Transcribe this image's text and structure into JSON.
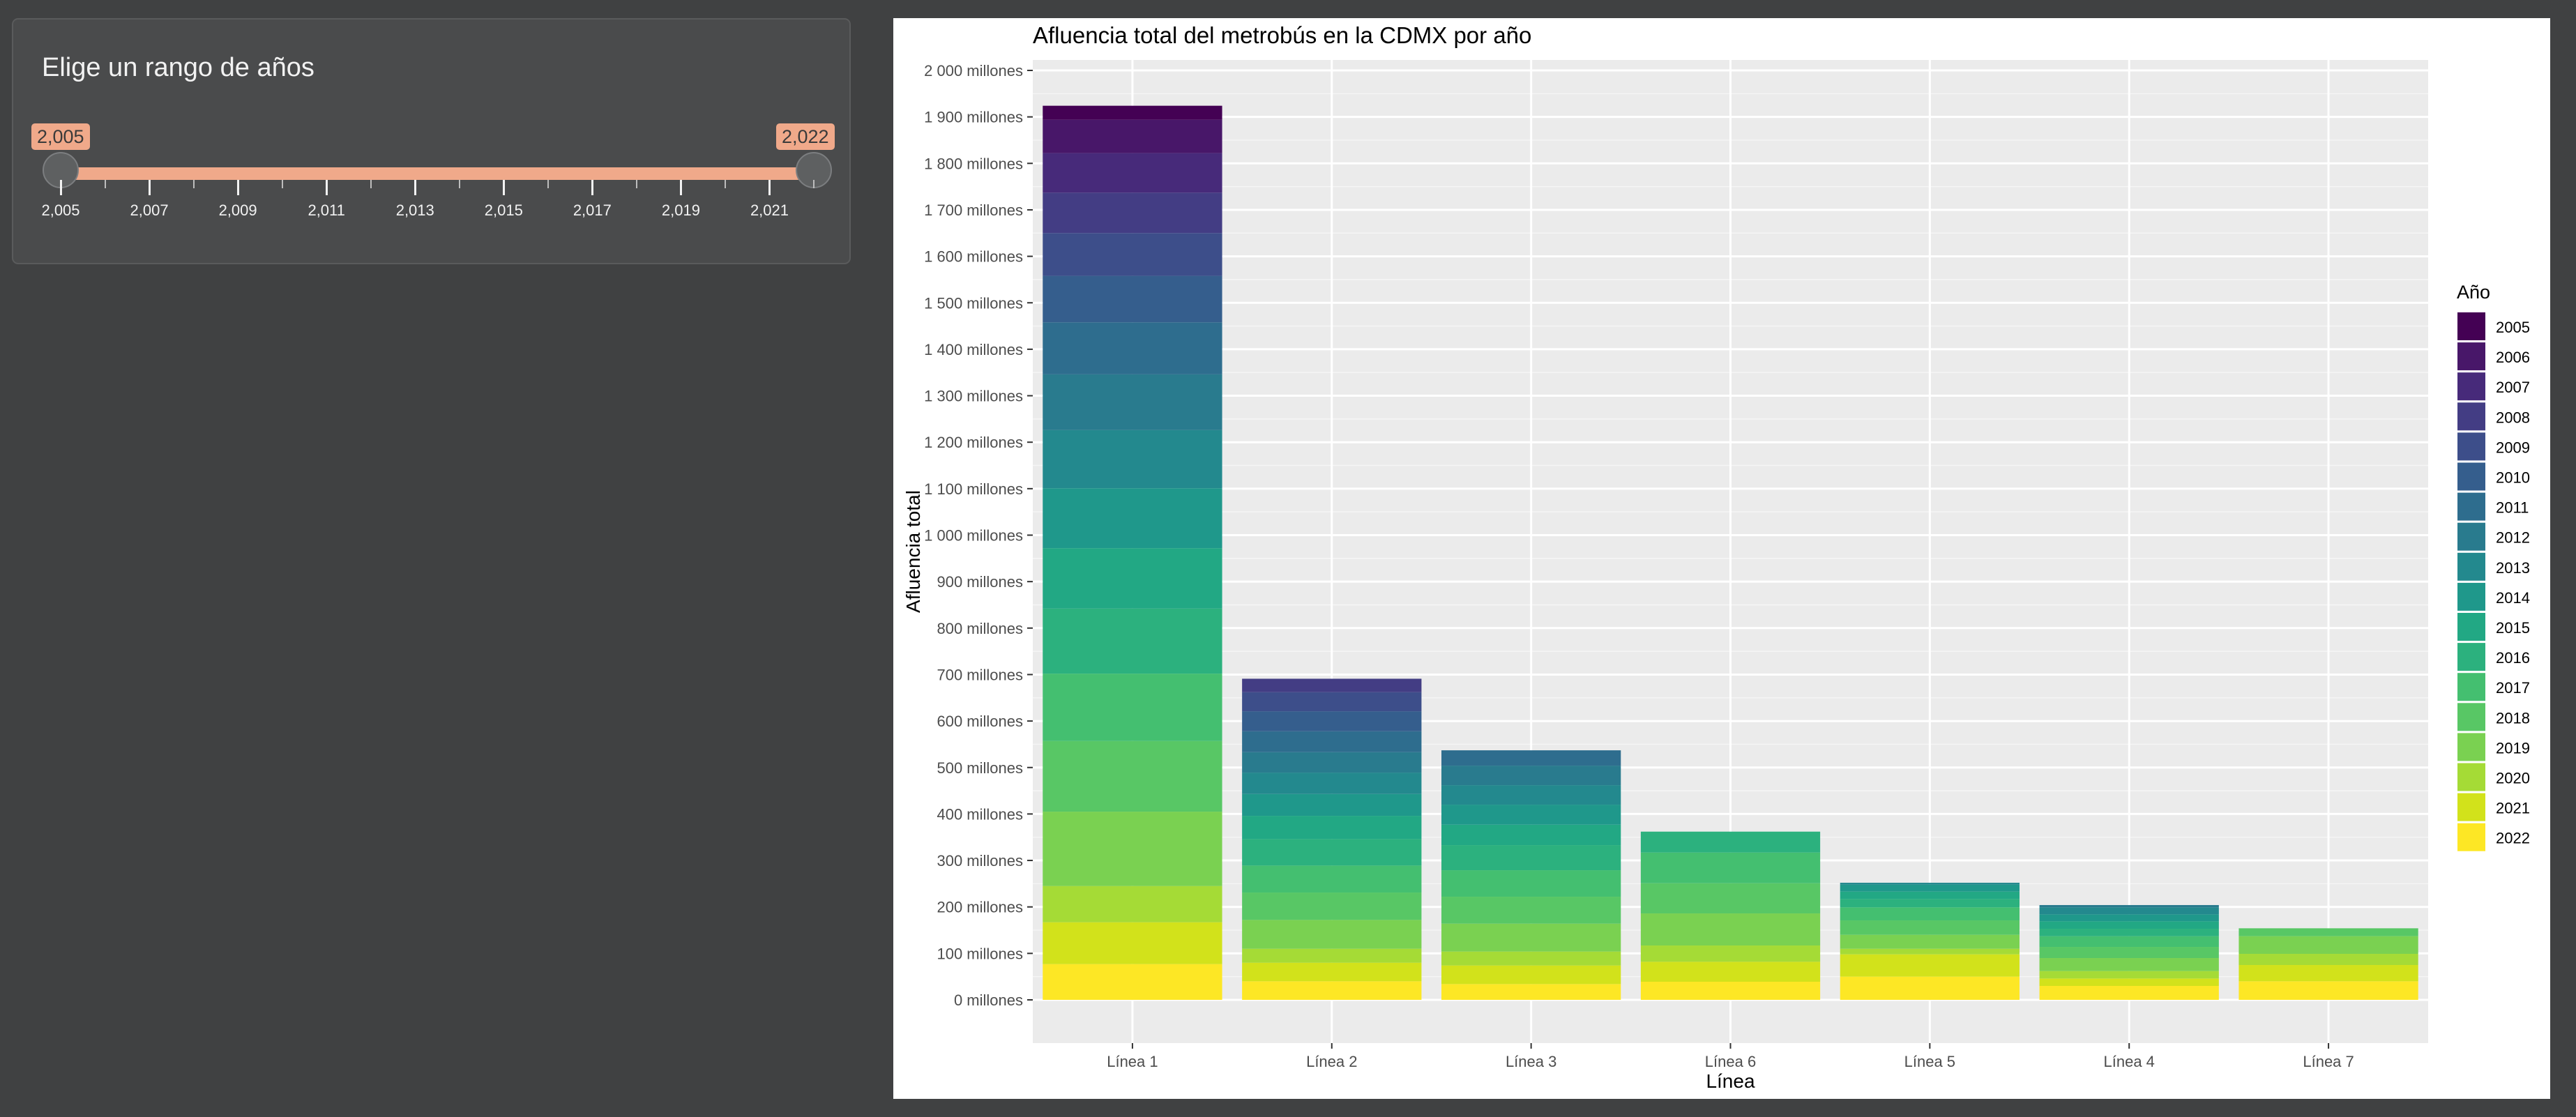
{
  "controls": {
    "panel_title": "Elige un rango de años",
    "slider": {
      "min_label": "2,005",
      "max_label": "2,022",
      "range_min": 2005,
      "range_max": 2022,
      "selected_min": 2005,
      "selected_max": 2022,
      "tick_labels": [
        "2,005",
        "2,007",
        "2,009",
        "2,011",
        "2,013",
        "2,015",
        "2,017",
        "2,019",
        "2,021"
      ],
      "accent_color": "#f0a98a"
    }
  },
  "chart_data": {
    "type": "bar",
    "stacked": true,
    "title": "Afluencia total del metrobús en la CDMX por año",
    "xlabel": "Línea",
    "ylabel": "Afluencia total",
    "ylim": [
      0,
      2000
    ],
    "y_unit": "millones",
    "y_ticks": [
      "0 millones",
      "100 millones",
      "200 millones",
      "300 millones",
      "400 millones",
      "500 millones",
      "600 millones",
      "700 millones",
      "800 millones",
      "900 millones",
      "1 000 millones",
      "1 100 millones",
      "1 200 millones",
      "1 300 millones",
      "1 400 millones",
      "1 500 millones",
      "1 600 millones",
      "1 700 millones",
      "1 800 millones",
      "1 900 millones",
      "2 000 millones"
    ],
    "grid": true,
    "legend_title": "Año",
    "legend_position": "right",
    "categories": [
      "Línea 1",
      "Línea 2",
      "Línea 3",
      "Línea 6",
      "Línea 5",
      "Línea 4",
      "Línea 7"
    ],
    "series": [
      {
        "name": "2005",
        "color": "#440154",
        "values": [
          30,
          0,
          0,
          0,
          0,
          0,
          0
        ]
      },
      {
        "name": "2006",
        "color": "#481769",
        "values": [
          72,
          0,
          0,
          0,
          0,
          0,
          0
        ]
      },
      {
        "name": "2007",
        "color": "#472A7A",
        "values": [
          85,
          0,
          0,
          0,
          0,
          0,
          0
        ]
      },
      {
        "name": "2008",
        "color": "#433D84",
        "values": [
          87,
          29,
          0,
          0,
          0,
          0,
          0
        ]
      },
      {
        "name": "2009",
        "color": "#3D4E8A",
        "values": [
          92,
          41,
          0,
          0,
          0,
          0,
          0
        ]
      },
      {
        "name": "2010",
        "color": "#355E8D",
        "values": [
          100,
          43,
          0,
          0,
          0,
          0,
          0
        ]
      },
      {
        "name": "2011",
        "color": "#2E6D8E",
        "values": [
          112,
          45,
          33,
          0,
          0,
          0,
          0
        ]
      },
      {
        "name": "2012",
        "color": "#297B8E",
        "values": [
          120,
          44,
          42,
          0,
          0,
          5,
          0
        ]
      },
      {
        "name": "2013",
        "color": "#23898E",
        "values": [
          125,
          46,
          42,
          0,
          4,
          15,
          0
        ]
      },
      {
        "name": "2014",
        "color": "#1F988B",
        "values": [
          129,
          47,
          43,
          0,
          15,
          15,
          0
        ]
      },
      {
        "name": "2015",
        "color": "#22A884",
        "values": [
          130,
          50,
          44,
          0,
          16,
          16,
          0
        ]
      },
      {
        "name": "2016",
        "color": "#2CB17E",
        "values": [
          140,
          57,
          54,
          45,
          18,
          16,
          0
        ]
      },
      {
        "name": "2017",
        "color": "#44BF70",
        "values": [
          145,
          58,
          57,
          66,
          28,
          23,
          0
        ]
      },
      {
        "name": "2018",
        "color": "#58C765",
        "values": [
          152,
          59,
          58,
          65,
          31,
          24,
          17
        ]
      },
      {
        "name": "2019",
        "color": "#7AD151",
        "values": [
          160,
          62,
          60,
          69,
          30,
          28,
          38
        ]
      },
      {
        "name": "2020",
        "color": "#A5DB36",
        "values": [
          78,
          30,
          30,
          35,
          12,
          16,
          24
        ]
      },
      {
        "name": "2021",
        "color": "#D2E21B",
        "values": [
          90,
          40,
          40,
          43,
          48,
          16,
          35
        ]
      },
      {
        "name": "2022",
        "color": "#FDE725",
        "values": [
          77,
          40,
          34,
          39,
          50,
          30,
          40
        ]
      }
    ]
  }
}
